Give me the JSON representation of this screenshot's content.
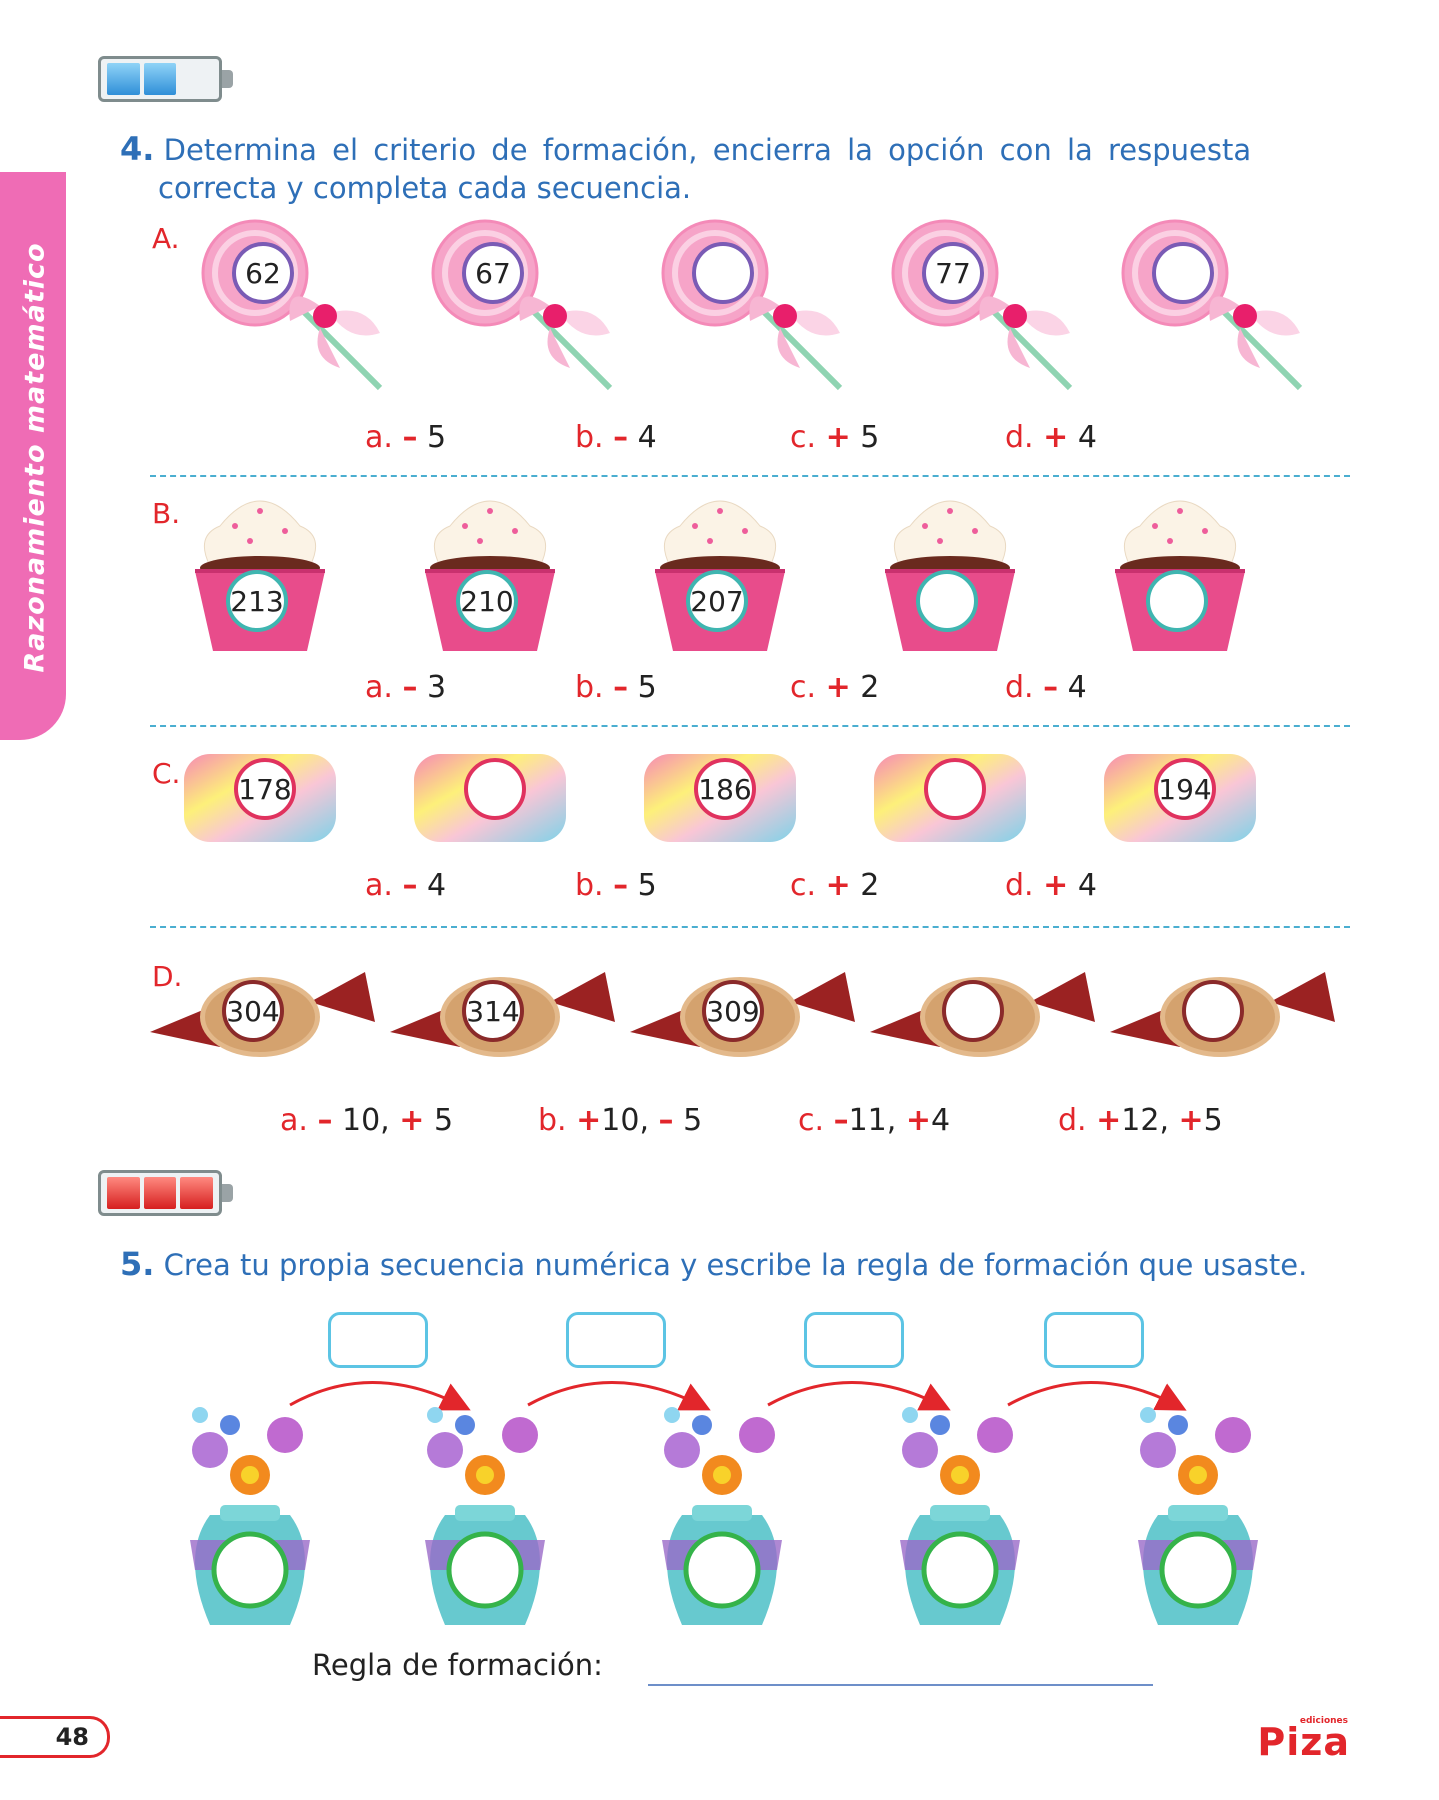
{
  "side_tab": {
    "label": "Razonamiento matemático"
  },
  "question4": {
    "number": "4.",
    "text_line1": "Determina el criterio de formación, encierra la opción con la respuesta",
    "text_line2": "correcta y completa cada secuencia.",
    "sections": [
      {
        "letter": "A.",
        "item": "lollipop",
        "numbers": [
          "62",
          "67",
          "",
          "77",
          ""
        ],
        "options": [
          {
            "letter": "a.",
            "sign": "–",
            "value": " 5"
          },
          {
            "letter": "b.",
            "sign": "–",
            "value": " 4"
          },
          {
            "letter": "c.",
            "sign": "+",
            "value": " 5"
          },
          {
            "letter": "d.",
            "sign": "+",
            "value": " 4"
          }
        ]
      },
      {
        "letter": "B.",
        "item": "cupcake",
        "numbers": [
          "213",
          "210",
          "207",
          "",
          ""
        ],
        "options": [
          {
            "letter": "a.",
            "sign": "–",
            "value": " 3"
          },
          {
            "letter": "b.",
            "sign": "–",
            "value": " 5"
          },
          {
            "letter": "c.",
            "sign": "+",
            "value": " 2"
          },
          {
            "letter": "d.",
            "sign": "–",
            "value": " 4"
          }
        ]
      },
      {
        "letter": "C.",
        "item": "marshmallow",
        "numbers": [
          "178",
          "",
          "186",
          "",
          "194"
        ],
        "options": [
          {
            "letter": "a.",
            "sign": "–",
            "value": " 4"
          },
          {
            "letter": "b.",
            "sign": "–",
            "value": " 5"
          },
          {
            "letter": "c.",
            "sign": "+",
            "value": " 2"
          },
          {
            "letter": "d.",
            "sign": "+",
            "value": " 4"
          }
        ]
      },
      {
        "letter": "D.",
        "item": "wrapped-candy",
        "numbers": [
          "304",
          "314",
          "309",
          "",
          ""
        ],
        "options": [
          {
            "letter": "a.",
            "s1": "–",
            "v1": " 10, ",
            "s2": "+",
            "v2": " 5"
          },
          {
            "letter": "b.",
            "s1": "+",
            "v1": "10, ",
            "s2": "–",
            "v2": " 5"
          },
          {
            "letter": "c.",
            "s1": "–",
            "v1": "11, ",
            "s2": "+",
            "v2": "4"
          },
          {
            "letter": "d.",
            "s1": "+",
            "v1": "12, ",
            "s2": "+",
            "v2": "5"
          }
        ]
      }
    ]
  },
  "question5": {
    "number": "5.",
    "text": "Crea tu propia secuencia numérica y escribe la regla de formación que usaste.",
    "rule_label": "Regla de formación:"
  },
  "footer": {
    "page_number": "48",
    "logo_small": "ediciones",
    "logo_main": "Piza"
  },
  "colors": {
    "title_blue": "#2e6fb7",
    "accent_red": "#e2262b",
    "tab_pink": "#ef6cb5",
    "dash_blue": "#4aaed0"
  }
}
